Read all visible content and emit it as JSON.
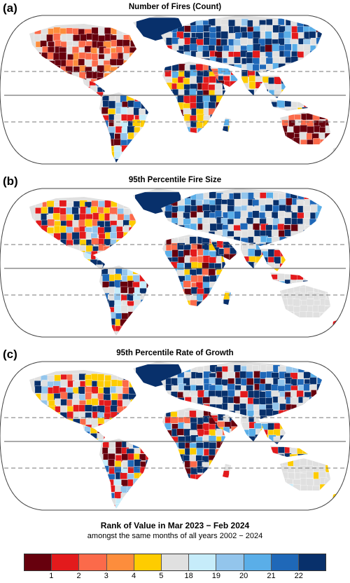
{
  "panels": [
    {
      "letter": "(a)",
      "title": "Number of Fires (Count)",
      "variant": 0
    },
    {
      "letter": "(b)",
      "title": "95th Percentile Fire Size",
      "variant": 1
    },
    {
      "letter": "(c)",
      "title": "95th Percentile Rate of Growth",
      "variant": 2
    }
  ],
  "legend": {
    "title": "Rank of Value in Mar 2023 − Feb 2024",
    "subtitle": "amongst the same months of all years 2002 − 2024",
    "colors": [
      "#67000d",
      "#e31a1c",
      "#fb6a4a",
      "#fd8d3c",
      "#fecc00",
      "#e0e0e0",
      "#c6ecfa",
      "#93c5ec",
      "#5aaee8",
      "#1f68b8",
      "#08306b"
    ],
    "tick_labels": [
      "1",
      "2",
      "3",
      "4",
      "5",
      "18",
      "19",
      "20",
      "21",
      "22"
    ]
  }
}
